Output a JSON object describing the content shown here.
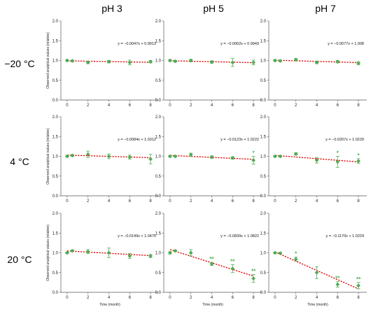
{
  "figure": {
    "column_headers": [
      "pH 3",
      "pH 5",
      "pH 7"
    ],
    "row_headers": [
      "−20 °C",
      "4 °C",
      "20 °C"
    ],
    "ylabel": "Observed analytical values (relative)",
    "xlabel": "Time (month)",
    "colors": {
      "marker": "#4caf50",
      "fit_line": "#e00000",
      "error_bar": "#4caf50",
      "axis": "#555555"
    }
  },
  "chart_data": [
    {
      "type": "scatter",
      "row": 0,
      "col": 0,
      "equation": "y = −0.0047x + 0.9913",
      "fit": {
        "slope": -0.0047,
        "intercept": 0.9913
      },
      "x": [
        0,
        0.5,
        2,
        4,
        6,
        8
      ],
      "y": [
        1.0,
        0.99,
        0.95,
        0.97,
        0.95,
        0.97
      ],
      "err": [
        0.02,
        0.02,
        0.03,
        0.03,
        0.06,
        0.03
      ],
      "stars": [],
      "xticks": [
        0,
        2,
        4,
        6,
        8
      ],
      "yticks": [
        0.0,
        0.5,
        1.0,
        1.5,
        2.0
      ],
      "xlim": [
        -0.6,
        8.8
      ],
      "ylim": [
        0,
        2
      ],
      "grid": false
    },
    {
      "type": "scatter",
      "row": 0,
      "col": 1,
      "equation": "y = −0.0062x + 0.9943",
      "fit": {
        "slope": -0.0062,
        "intercept": 0.9943
      },
      "x": [
        0,
        0.5,
        2,
        4,
        6,
        8
      ],
      "y": [
        1.0,
        0.98,
        1.0,
        0.96,
        0.95,
        0.95
      ],
      "err": [
        0.02,
        0.02,
        0.03,
        0.03,
        0.1,
        0.06
      ],
      "stars": [],
      "xticks": [
        0,
        2,
        4,
        6,
        8
      ],
      "yticks": [
        0.0,
        0.5,
        1.0,
        1.5,
        2.0
      ],
      "xlim": [
        -0.6,
        8.8
      ],
      "ylim": [
        0,
        2
      ],
      "grid": false
    },
    {
      "type": "scatter",
      "row": 0,
      "col": 2,
      "equation": "y = −0.0077x + 1.008",
      "fit": {
        "slope": -0.0077,
        "intercept": 1.008
      },
      "x": [
        0,
        0.5,
        2,
        4,
        6,
        8
      ],
      "y": [
        1.0,
        0.99,
        1.02,
        0.95,
        0.97,
        0.93
      ],
      "err": [
        0.02,
        0.02,
        0.03,
        0.03,
        0.03,
        0.04
      ],
      "stars": [],
      "xticks": [
        0,
        2,
        4,
        6,
        8
      ],
      "yticks": [
        0.0,
        0.5,
        1.0,
        1.5,
        2.0
      ],
      "xlim": [
        -0.6,
        8.8
      ],
      "ylim": [
        0,
        2
      ],
      "grid": false
    },
    {
      "type": "scatter",
      "row": 1,
      "col": 0,
      "equation": "y = −0.0084x + 1.0312",
      "fit": {
        "slope": -0.0084,
        "intercept": 1.0312
      },
      "x": [
        0,
        0.5,
        2,
        4,
        6,
        8
      ],
      "y": [
        1.0,
        1.02,
        1.05,
        1.0,
        0.98,
        0.93
      ],
      "err": [
        0.02,
        0.02,
        0.08,
        0.06,
        0.05,
        0.12
      ],
      "stars": [],
      "xticks": [
        0,
        2,
        4,
        6,
        8
      ],
      "yticks": [
        0.0,
        0.5,
        1.0,
        1.5,
        2.0
      ],
      "xlim": [
        -0.6,
        8.8
      ],
      "ylim": [
        0,
        2
      ],
      "grid": false
    },
    {
      "type": "scatter",
      "row": 1,
      "col": 1,
      "equation": "y = −0.0123x + 1.0222",
      "fit": {
        "slope": -0.0123,
        "intercept": 1.0222
      },
      "x": [
        0,
        0.5,
        2,
        4,
        6,
        8
      ],
      "y": [
        1.0,
        1.0,
        1.04,
        0.98,
        0.96,
        0.9
      ],
      "err": [
        0.02,
        0.02,
        0.04,
        0.03,
        0.03,
        0.1
      ],
      "stars": [
        "",
        "",
        "",
        "",
        "",
        "*"
      ],
      "xticks": [
        0,
        2,
        4,
        6,
        8
      ],
      "yticks": [
        0.0,
        0.5,
        1.0,
        1.5,
        2.0
      ],
      "xlim": [
        -0.6,
        8.8
      ],
      "ylim": [
        0,
        2
      ],
      "grid": false
    },
    {
      "type": "scatter",
      "row": 1,
      "col": 2,
      "equation": "y = −0.0207x + 1.0229",
      "fit": {
        "slope": -0.0207,
        "intercept": 1.0229
      },
      "x": [
        0,
        0.5,
        2,
        4,
        6,
        8
      ],
      "y": [
        1.0,
        1.0,
        1.06,
        0.9,
        0.86,
        0.88
      ],
      "err": [
        0.02,
        0.02,
        0.03,
        0.07,
        0.14,
        0.06
      ],
      "stars": [
        "",
        "",
        "",
        "",
        "*",
        "*"
      ],
      "xticks": [
        0,
        2,
        4,
        6,
        8
      ],
      "yticks": [
        0.0,
        0.5,
        1.0,
        1.5,
        2.0
      ],
      "xlim": [
        -0.6,
        8.8
      ],
      "ylim": [
        0,
        2
      ],
      "grid": false
    },
    {
      "type": "scatter",
      "row": 2,
      "col": 0,
      "equation": "y = −0.0149x + 1.0475",
      "fit": {
        "slope": -0.0149,
        "intercept": 1.0475
      },
      "x": [
        0,
        0.5,
        2,
        4,
        6,
        8
      ],
      "y": [
        1.0,
        1.05,
        1.03,
        1.0,
        0.92,
        0.92
      ],
      "err": [
        0.02,
        0.02,
        0.05,
        0.12,
        0.06,
        0.04
      ],
      "stars": [],
      "xticks": [
        0,
        2,
        4,
        6,
        8
      ],
      "yticks": [
        0.0,
        0.5,
        1.0,
        1.5,
        2.0
      ],
      "xlim": [
        -0.6,
        8.8
      ],
      "ylim": [
        0,
        2
      ],
      "grid": false
    },
    {
      "type": "scatter",
      "row": 2,
      "col": 1,
      "equation": "y = −0.0839x + 1.0822",
      "fit": {
        "slope": -0.0839,
        "intercept": 1.0822
      },
      "x": [
        0,
        0.5,
        2,
        4,
        6,
        8
      ],
      "y": [
        1.0,
        1.05,
        1.0,
        0.72,
        0.6,
        0.35
      ],
      "err": [
        0.03,
        0.02,
        0.08,
        0.04,
        0.1,
        0.1
      ],
      "stars": [
        "",
        "",
        "",
        "**",
        "**",
        "**"
      ],
      "xticks": [
        0,
        2,
        4,
        6,
        8
      ],
      "yticks": [
        0.0,
        0.5,
        1.0,
        1.5,
        2.0
      ],
      "xlim": [
        -0.6,
        8.8
      ],
      "ylim": [
        0,
        2
      ],
      "grid": false
    },
    {
      "type": "scatter",
      "row": 2,
      "col": 2,
      "equation": "y = −0.1170x + 1.0229",
      "fit": {
        "slope": -0.117,
        "intercept": 1.0229
      },
      "x": [
        0,
        0.5,
        2,
        4,
        6,
        8
      ],
      "y": [
        1.0,
        0.99,
        0.84,
        0.5,
        0.2,
        0.17
      ],
      "err": [
        0.02,
        0.02,
        0.05,
        0.15,
        0.07,
        0.08
      ],
      "stars": [
        "",
        "",
        "*",
        "",
        "**",
        "**"
      ],
      "xticks": [
        0,
        2,
        4,
        6,
        8
      ],
      "yticks": [
        0.0,
        0.5,
        1.0,
        1.5,
        2.0
      ],
      "xlim": [
        -0.6,
        8.8
      ],
      "ylim": [
        0,
        2
      ],
      "grid": false
    }
  ]
}
